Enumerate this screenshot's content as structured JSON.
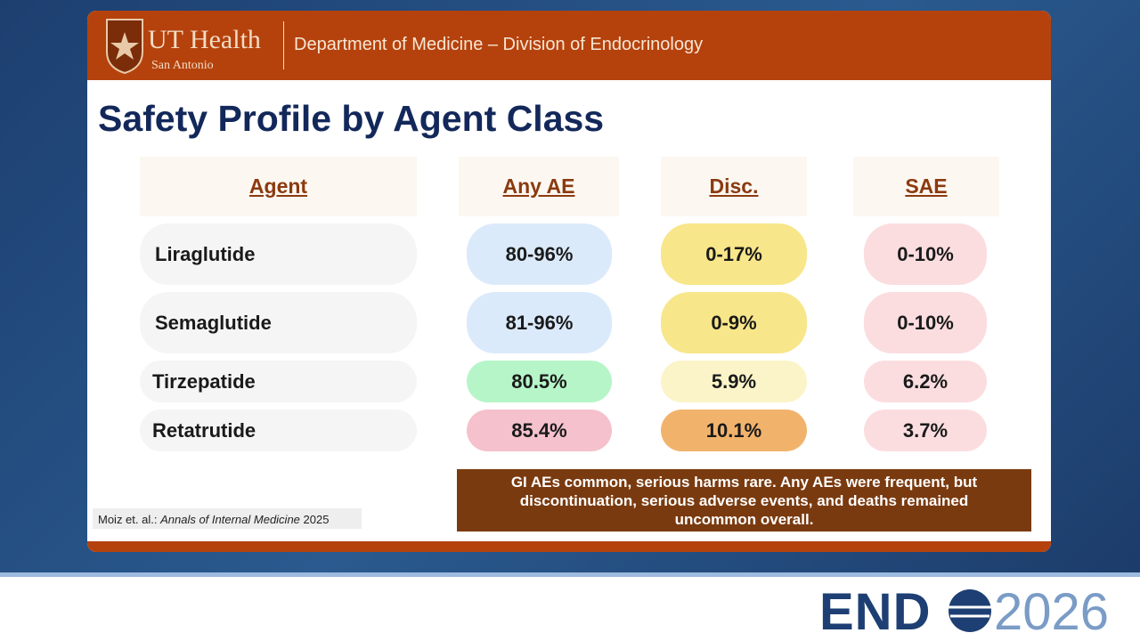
{
  "header": {
    "logo_name": "UT Health",
    "logo_sub": "San Antonio",
    "department": "Department of Medicine – Division of Endocrinology"
  },
  "title": "Safety Profile by Agent Class",
  "table": {
    "columns": [
      "Agent",
      "Any AE",
      "Disc.",
      "SAE"
    ],
    "rows": [
      [
        "Liraglutide",
        "80-96%",
        "0-17%",
        "0-10%"
      ],
      [
        "Semaglutide",
        "81-96%",
        "0-9%",
        "0-10%"
      ],
      [
        "Tirzepatide",
        "80.5%",
        "5.9%",
        "6.2%"
      ],
      [
        "Retatrutide",
        "85.4%",
        "10.1%",
        "3.7%"
      ]
    ]
  },
  "citation": {
    "authors": "Moiz et. al.:",
    "journal": "Annals of Internal Medicine",
    "year": "2025"
  },
  "note": "GI AEs common, serious harms rare. Any AEs were frequent, but discontinuation, serious adverse events, and deaths remained uncommon overall.",
  "footer": {
    "brand": "END",
    "year": "2026"
  }
}
